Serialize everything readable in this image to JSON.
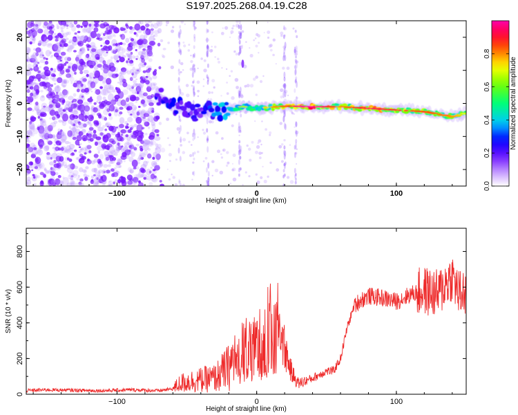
{
  "title": "S197.2025.268.04.19.C28",
  "colors": {
    "snr_line": "#ee2a2a",
    "axis": "#000000",
    "scatter": "#7a1aff"
  },
  "chart_data": [
    {
      "type": "heatmap",
      "title": "S197.2025.268.04.19.C28",
      "xlabel": "Height of straight line (km)",
      "ylabel": "Frequency (Hz)",
      "xlim": [
        -165,
        150
      ],
      "ylim": [
        -25,
        25
      ],
      "x_ticks": [
        -100,
        0,
        100
      ],
      "y_ticks": [
        -20,
        -10,
        0,
        10,
        20
      ],
      "colorbar": {
        "label": "Normalized spectral amplitude",
        "range": [
          0,
          1
        ],
        "ticks": [
          "0.0",
          "0.2",
          "0.4",
          "0.6",
          "0.8"
        ],
        "tick_values": [
          0.0,
          0.2,
          0.4,
          0.6,
          0.8
        ],
        "colormap": "rainbow"
      },
      "ridge": {
        "description": "dominant frequency band",
        "points": [
          {
            "x": -70,
            "y": 2,
            "amp": 0.3
          },
          {
            "x": -60,
            "y": -1,
            "amp": 0.3
          },
          {
            "x": -40,
            "y": -3,
            "amp": 0.25
          },
          {
            "x": -25,
            "y": -2,
            "amp": 0.45
          },
          {
            "x": -10,
            "y": -1,
            "amp": 0.55
          },
          {
            "x": 0,
            "y": -1.5,
            "amp": 0.6
          },
          {
            "x": 20,
            "y": -0.8,
            "amp": 0.75
          },
          {
            "x": 40,
            "y": -1,
            "amp": 0.95
          },
          {
            "x": 60,
            "y": -1,
            "amp": 0.7
          },
          {
            "x": 80,
            "y": -1.5,
            "amp": 0.85
          },
          {
            "x": 100,
            "y": -2,
            "amp": 0.8
          },
          {
            "x": 120,
            "y": -2.5,
            "amp": 0.75
          },
          {
            "x": 140,
            "y": -4,
            "amp": 0.7
          },
          {
            "x": 150,
            "y": -3,
            "amp": 0.6
          }
        ]
      }
    },
    {
      "type": "line",
      "xlabel": "Height of straight line (km)",
      "ylabel": "SNR (10 * v/v)",
      "xlim": [
        -165,
        150
      ],
      "ylim": [
        0,
        930
      ],
      "x_ticks": [
        -100,
        0,
        100
      ],
      "y_ticks": [
        0,
        200,
        400,
        600,
        800
      ],
      "series": [
        {
          "name": "SNR",
          "x": [
            -165,
            -150,
            -130,
            -110,
            -90,
            -70,
            -60,
            -55,
            -50,
            -40,
            -30,
            -20,
            -15,
            -10,
            -5,
            0,
            5,
            10,
            15,
            20,
            25,
            30,
            40,
            50,
            55,
            60,
            65,
            70,
            75,
            80,
            90,
            100,
            110,
            120,
            130,
            135,
            140,
            145,
            150
          ],
          "values": [
            20,
            25,
            22,
            20,
            25,
            20,
            30,
            60,
            70,
            80,
            90,
            150,
            220,
            330,
            340,
            350,
            420,
            530,
            420,
            260,
            120,
            60,
            90,
            130,
            130,
            200,
            380,
            500,
            530,
            550,
            540,
            520,
            560,
            580,
            560,
            620,
            660,
            560,
            570
          ]
        }
      ]
    }
  ]
}
